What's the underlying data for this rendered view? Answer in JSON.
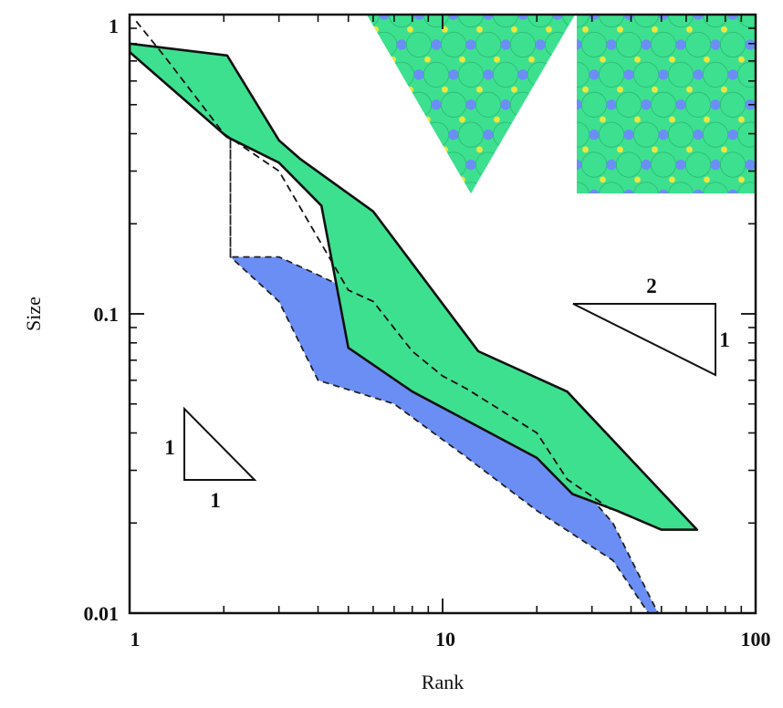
{
  "chart_data": {
    "type": "area",
    "title": "",
    "xlabel": "Rank",
    "ylabel": "Size",
    "xscale": "log",
    "yscale": "log",
    "xlim": [
      1,
      100
    ],
    "ylim": [
      0.01,
      1
    ],
    "x_ticks": [
      1,
      10,
      100
    ],
    "x_tick_labels": [
      "1",
      "10",
      "100"
    ],
    "y_ticks": [
      0.01,
      0.1,
      1
    ],
    "y_tick_labels": [
      "0.01",
      "0.1",
      "1"
    ],
    "grid": false,
    "series": [
      {
        "name": "blue-band",
        "color": "#6b8ef5",
        "style": "dashed-outline",
        "upper": {
          "x": [
            2.1,
            2.1,
            3,
            4,
            6,
            10,
            20,
            25,
            35,
            50
          ],
          "y": [
            0.42,
            0.155,
            0.155,
            0.135,
            0.11,
            0.06,
            0.04,
            0.03,
            0.02,
            0.0095
          ]
        },
        "lower": {
          "x": [
            2.1,
            2.1,
            3,
            4,
            7,
            12,
            20,
            35,
            47
          ],
          "y": [
            0.42,
            0.155,
            0.11,
            0.06,
            0.05,
            0.033,
            0.022,
            0.015,
            0.0095
          ]
        }
      },
      {
        "name": "green-band",
        "color": "#3de08f",
        "style": "solid-outline",
        "upper": {
          "x": [
            1,
            2.05,
            3,
            3.5,
            6,
            13,
            25,
            65
          ],
          "y": [
            0.8,
            0.73,
            0.38,
            0.33,
            0.22,
            0.075,
            0.055,
            0.019
          ]
        },
        "lower": {
          "x": [
            1,
            2.05,
            3,
            4.1,
            5,
            8,
            13,
            20,
            26,
            36,
            50,
            65
          ],
          "y": [
            0.75,
            0.39,
            0.32,
            0.23,
            0.077,
            0.055,
            0.042,
            0.033,
            0.025,
            0.022,
            0.019,
            0.019
          ]
        }
      },
      {
        "name": "reference-line",
        "color": "#111111",
        "style": "dashed",
        "x": [
          1.05,
          1.3,
          2,
          3,
          5,
          6,
          8,
          10,
          12,
          20,
          25,
          35
        ],
        "y": [
          0.95,
          0.72,
          0.4,
          0.3,
          0.12,
          0.11,
          0.075,
          0.062,
          0.056,
          0.04,
          0.028,
          0.022
        ]
      }
    ],
    "annotations": [
      {
        "name": "slope-1-triangle",
        "slope_label_run": "1",
        "slope_label_rise": "1"
      },
      {
        "name": "slope-half-triangle",
        "slope_label_run": "2",
        "slope_label_rise": "1"
      }
    ],
    "insets": [
      {
        "name": "triangular-tiling-inset",
        "fill": "#3de08f",
        "circle_color": "#6b8ef5",
        "dot_color": "#f1e53a"
      },
      {
        "name": "square-tiling-inset",
        "fill": "#3de08f",
        "circle_color": "#6b8ef5",
        "dot_color": "#f1e53a"
      }
    ]
  }
}
